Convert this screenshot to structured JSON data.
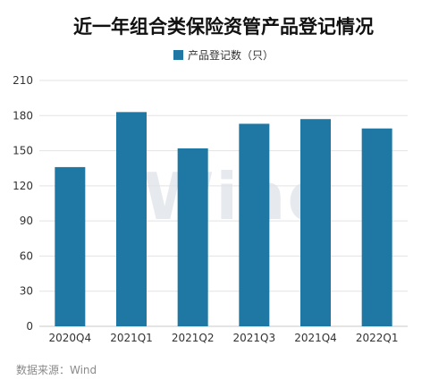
{
  "chart_data": {
    "type": "bar",
    "title": "近一年组合类保险资管产品登记情况",
    "categories": [
      "2020Q4",
      "2021Q1",
      "2021Q2",
      "2021Q3",
      "2021Q4",
      "2022Q1"
    ],
    "series": [
      {
        "name": "产品登记数（只）",
        "values": [
          136,
          183,
          152,
          173,
          177,
          169
        ]
      }
    ],
    "yticks": [
      0,
      30,
      60,
      90,
      120,
      150,
      180,
      210
    ],
    "ylim": [
      0,
      210
    ],
    "grid": true,
    "legend_position": "top-center",
    "bar_color": "#1f78a4"
  },
  "watermark": "Wind",
  "source": "数据来源：Wind"
}
